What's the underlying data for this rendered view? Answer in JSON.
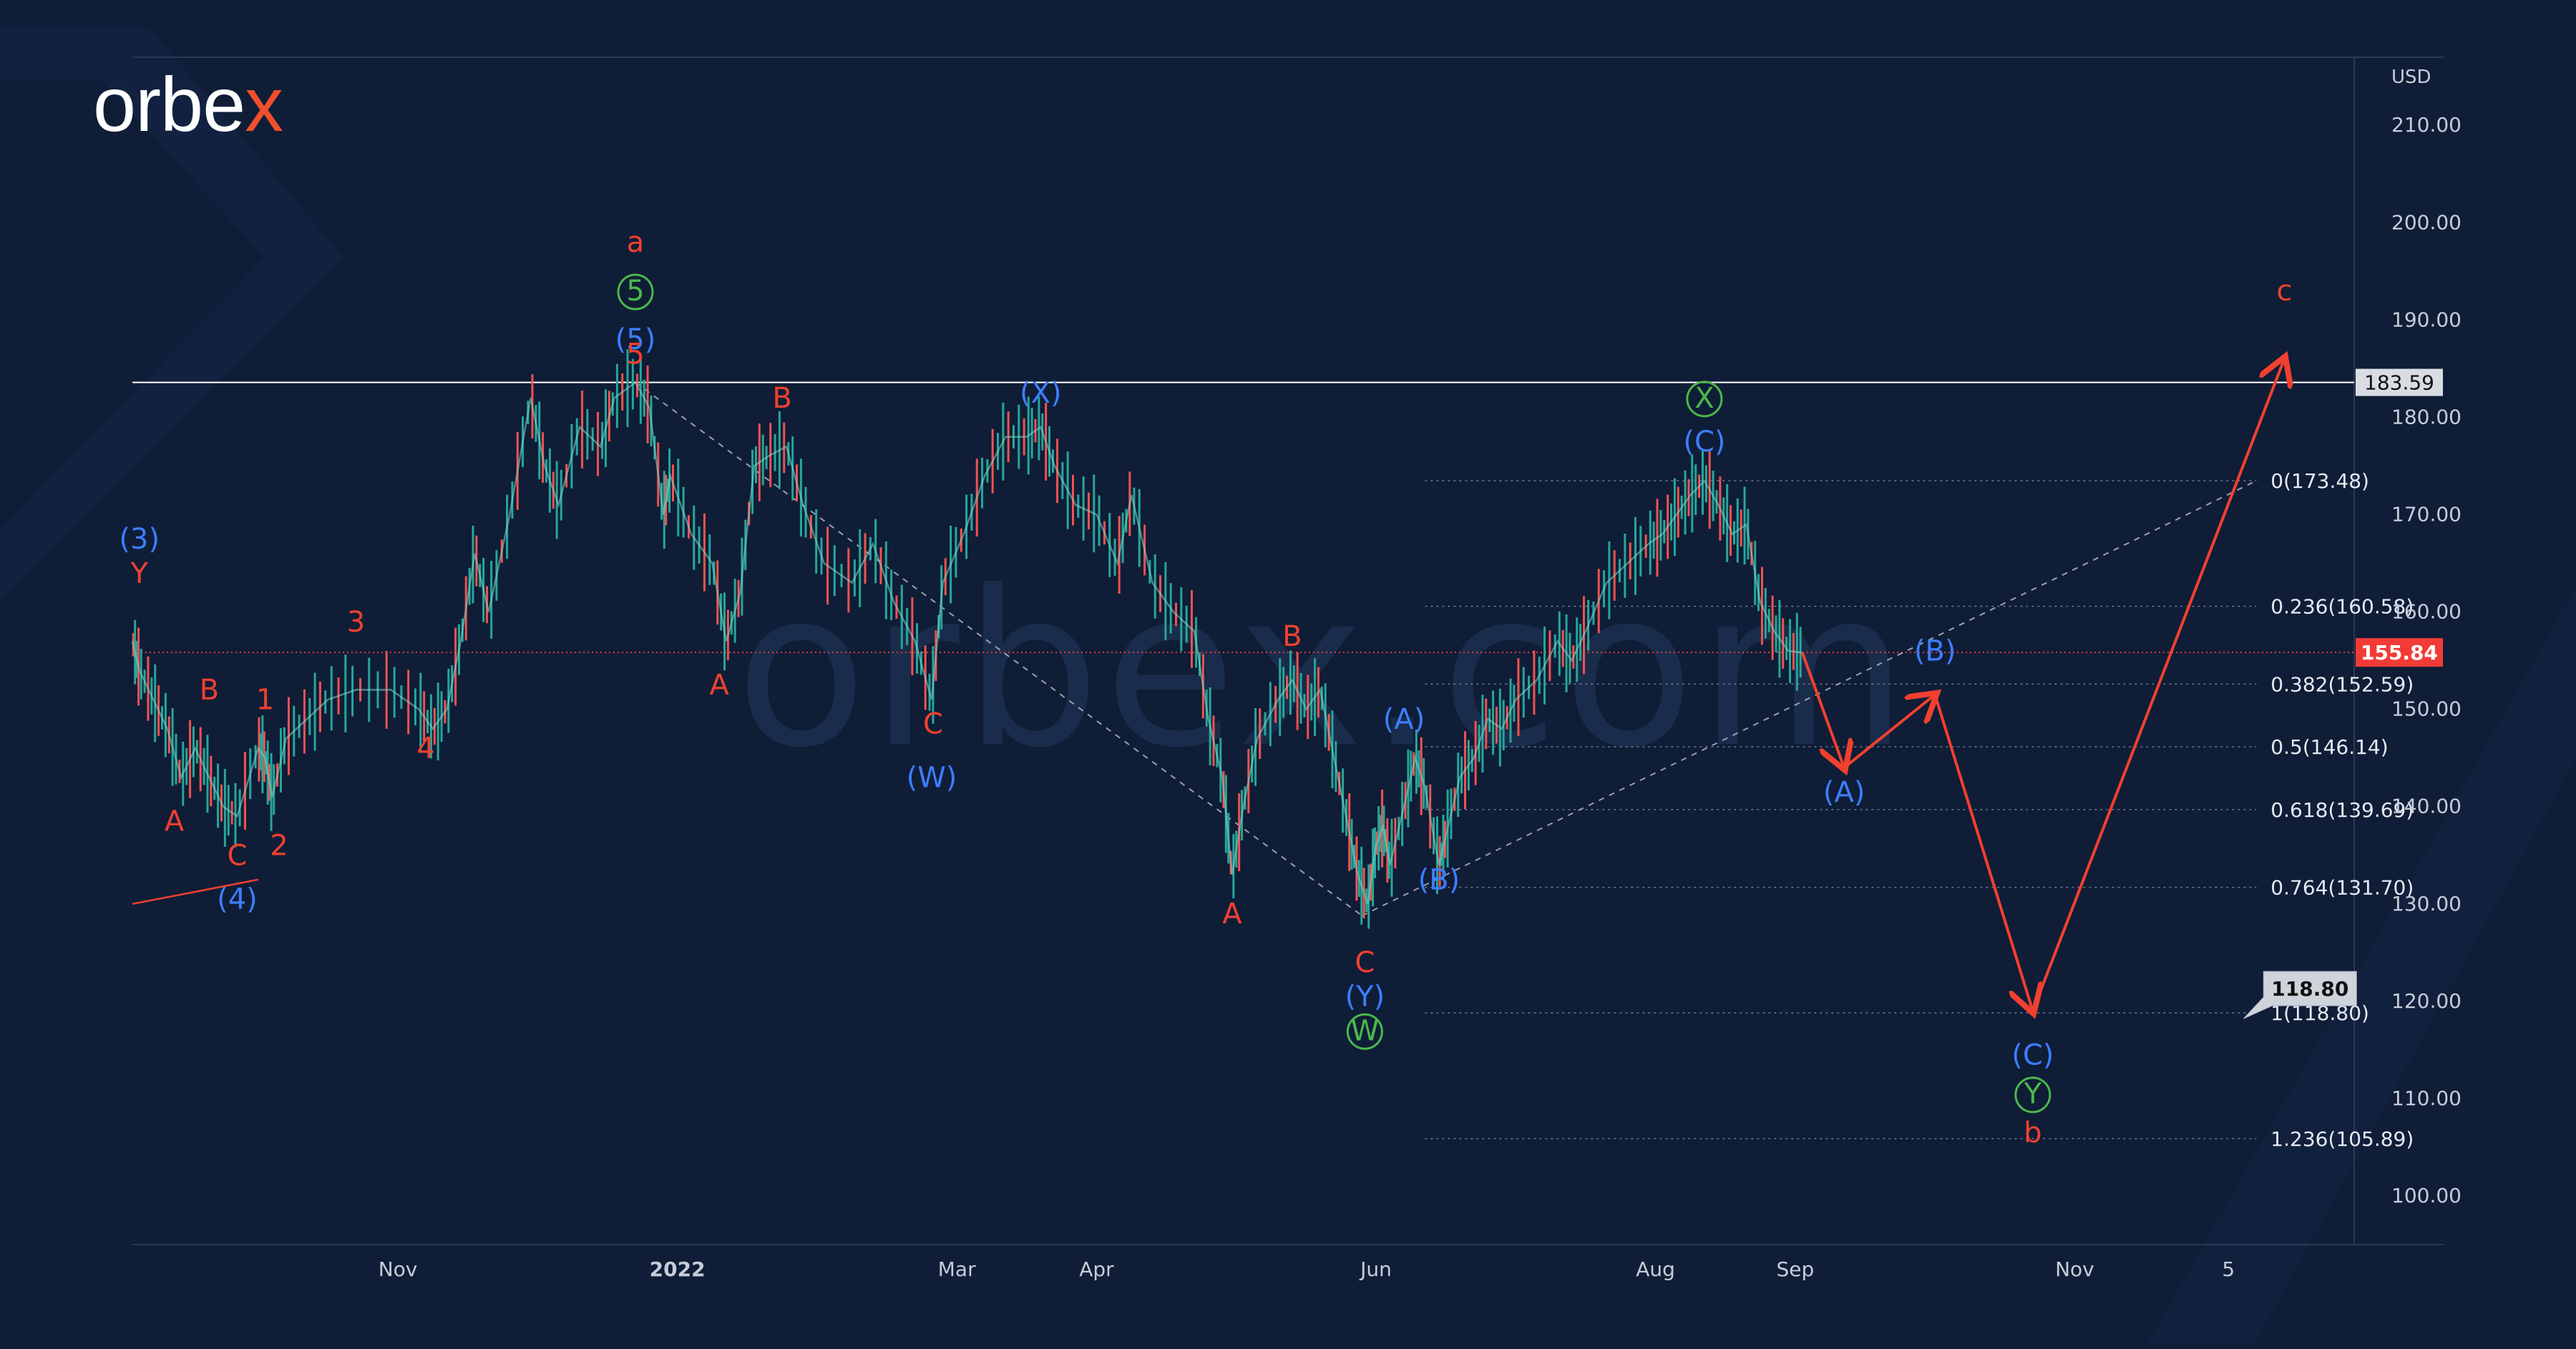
{
  "brand": {
    "name_main": "orbe",
    "name_x": "x",
    "watermark": "orbex.com"
  },
  "colors": {
    "background": "#0f1d37",
    "red": "#f0402f",
    "blue": "#3d7dff",
    "green": "#4bb84a",
    "grid": "#2a3a55",
    "axis_text": "#c7ccd8",
    "price_line": "#ffffff",
    "current_price_bg": "#f23b36"
  },
  "chart_data": {
    "type": "line",
    "title": "",
    "currency": "USD",
    "y_range": [
      95,
      217
    ],
    "yticks": [
      "100.00",
      "110.00",
      "120.00",
      "130.00",
      "140.00",
      "150.00",
      "160.00",
      "170.00",
      "180.00",
      "190.00",
      "200.00",
      "210.00"
    ],
    "xticks": [
      {
        "label": "Nov",
        "x": 1
      },
      {
        "label": "2022",
        "x": 3
      },
      {
        "label": "Mar",
        "x": 5
      },
      {
        "label": "Apr",
        "x": 6
      },
      {
        "label": "Jun",
        "x": 8
      },
      {
        "label": "Aug",
        "x": 10
      },
      {
        "label": "Sep",
        "x": 11
      },
      {
        "label": "Nov",
        "x": 13
      },
      {
        "label": "5",
        "x": 14.1
      }
    ],
    "price_series": [
      [
        -0.9,
        157
      ],
      [
        -0.85,
        154
      ],
      [
        -0.75,
        151
      ],
      [
        -0.65,
        148
      ],
      [
        -0.55,
        143
      ],
      [
        -0.45,
        146
      ],
      [
        -0.35,
        143
      ],
      [
        -0.25,
        140
      ],
      [
        -0.15,
        139
      ],
      [
        0.0,
        146
      ],
      [
        0.05,
        145
      ],
      [
        0.1,
        141
      ],
      [
        0.2,
        147
      ],
      [
        0.35,
        149
      ],
      [
        0.5,
        151
      ],
      [
        0.7,
        152
      ],
      [
        0.95,
        152
      ],
      [
        1.15,
        150
      ],
      [
        1.25,
        148
      ],
      [
        1.35,
        150
      ],
      [
        1.45,
        157
      ],
      [
        1.55,
        166
      ],
      [
        1.65,
        160
      ],
      [
        1.8,
        170
      ],
      [
        1.95,
        182
      ],
      [
        2.05,
        175
      ],
      [
        2.15,
        171
      ],
      [
        2.3,
        179
      ],
      [
        2.45,
        177
      ],
      [
        2.55,
        182
      ],
      [
        2.7,
        183.6
      ],
      [
        2.8,
        181
      ],
      [
        2.9,
        170
      ],
      [
        2.95,
        174
      ],
      [
        3.1,
        168
      ],
      [
        3.25,
        165
      ],
      [
        3.35,
        157
      ],
      [
        3.45,
        162
      ],
      [
        3.55,
        175
      ],
      [
        3.65,
        176
      ],
      [
        3.78,
        177
      ],
      [
        3.9,
        171
      ],
      [
        4.05,
        165
      ],
      [
        4.25,
        163
      ],
      [
        4.4,
        167
      ],
      [
        4.55,
        161
      ],
      [
        4.7,
        157
      ],
      [
        4.82,
        151
      ],
      [
        4.9,
        163
      ],
      [
        5.05,
        168
      ],
      [
        5.2,
        174
      ],
      [
        5.35,
        178
      ],
      [
        5.5,
        178
      ],
      [
        5.6,
        179
      ],
      [
        5.7,
        175
      ],
      [
        5.85,
        171
      ],
      [
        6.0,
        170
      ],
      [
        6.15,
        165
      ],
      [
        6.25,
        172
      ],
      [
        6.4,
        163
      ],
      [
        6.55,
        160
      ],
      [
        6.7,
        158
      ],
      [
        6.8,
        149
      ],
      [
        6.9,
        143
      ],
      [
        6.97,
        133
      ],
      [
        7.05,
        140
      ],
      [
        7.15,
        147
      ],
      [
        7.3,
        151
      ],
      [
        7.4,
        153
      ],
      [
        7.5,
        150
      ],
      [
        7.6,
        152
      ],
      [
        7.7,
        145
      ],
      [
        7.8,
        138
      ],
      [
        7.87,
        133
      ],
      [
        7.94,
        130
      ],
      [
        8.0,
        136
      ],
      [
        8.05,
        138
      ],
      [
        8.1,
        134
      ],
      [
        8.2,
        140
      ],
      [
        8.28,
        145
      ],
      [
        8.35,
        142
      ],
      [
        8.45,
        134
      ],
      [
        8.5,
        137
      ],
      [
        8.6,
        143
      ],
      [
        8.7,
        145
      ],
      [
        8.8,
        149
      ],
      [
        8.9,
        148
      ],
      [
        9.0,
        151
      ],
      [
        9.15,
        153
      ],
      [
        9.3,
        157
      ],
      [
        9.4,
        155
      ],
      [
        9.5,
        158
      ],
      [
        9.65,
        163
      ],
      [
        9.8,
        165
      ],
      [
        9.95,
        167
      ],
      [
        10.05,
        168
      ],
      [
        10.15,
        170
      ],
      [
        10.25,
        172
      ],
      [
        10.35,
        173.48
      ],
      [
        10.45,
        171
      ],
      [
        10.55,
        168
      ],
      [
        10.65,
        169
      ],
      [
        10.75,
        161
      ],
      [
        10.85,
        158
      ],
      [
        10.95,
        156
      ],
      [
        11.05,
        155.84
      ]
    ],
    "fib_levels": [
      {
        "label": "0(173.48)",
        "value": 173.48
      },
      {
        "label": "0.236(160.58)",
        "value": 160.58
      },
      {
        "label": "0.382(152.59)",
        "value": 152.59
      },
      {
        "label": "0.5(146.14)",
        "value": 146.14
      },
      {
        "label": "0.618(139.69)",
        "value": 139.69
      },
      {
        "label": "0.764(131.70)",
        "value": 131.7
      },
      {
        "label": "1(118.80)",
        "value": 118.8
      },
      {
        "label": "1.236(105.89)",
        "value": 105.89
      }
    ],
    "fib_x_range": [
      8.35,
      14.3
    ],
    "resistance_level": 183.59,
    "resistance_label": "183.59",
    "current_price": 155.84,
    "current_price_label": "155.84",
    "target": {
      "value": 118.8,
      "label": "118.80",
      "x": 14.3
    },
    "forecast_path": [
      [
        11.05,
        155.84
      ],
      [
        11.35,
        144
      ],
      [
        12.0,
        151.5
      ],
      [
        12.7,
        119
      ],
      [
        14.5,
        186
      ]
    ],
    "trend_line_1": [
      [
        2.7,
        183.59
      ],
      [
        7.9,
        128.8
      ]
    ],
    "trend_line_2": [
      [
        7.9,
        128.8
      ],
      [
        14.3,
        173.48
      ]
    ],
    "wedge_line": [
      [
        -0.9,
        130
      ],
      [
        0.0,
        132.5
      ]
    ],
    "wave_labels": [
      {
        "text": "a",
        "x": 2.7,
        "y": 197,
        "color": "red"
      },
      {
        "text": "5",
        "x": 2.7,
        "y": 192,
        "color": "green",
        "circle": true
      },
      {
        "text": "(5)",
        "x": 2.7,
        "y": 187,
        "color": "blue"
      },
      {
        "text": "5",
        "x": 2.7,
        "y": 185.5,
        "color": "red"
      },
      {
        "text": "(3)",
        "x": -0.85,
        "y": 166.5,
        "color": "blue"
      },
      {
        "text": "Y",
        "x": -0.85,
        "y": 163,
        "color": "red"
      },
      {
        "text": "B",
        "x": -0.35,
        "y": 151,
        "color": "red"
      },
      {
        "text": "A",
        "x": -0.6,
        "y": 137.5,
        "color": "red"
      },
      {
        "text": "C",
        "x": -0.15,
        "y": 134,
        "color": "red"
      },
      {
        "text": "(4)",
        "x": -0.15,
        "y": 129.5,
        "color": "blue"
      },
      {
        "text": "1",
        "x": 0.05,
        "y": 150,
        "color": "red"
      },
      {
        "text": "2",
        "x": 0.15,
        "y": 135,
        "color": "red"
      },
      {
        "text": "3",
        "x": 0.7,
        "y": 158,
        "color": "red"
      },
      {
        "text": "4",
        "x": 1.2,
        "y": 145,
        "color": "red"
      },
      {
        "text": "A",
        "x": 3.3,
        "y": 151.5,
        "color": "red"
      },
      {
        "text": "B",
        "x": 3.75,
        "y": 181,
        "color": "red"
      },
      {
        "text": "C",
        "x": 4.83,
        "y": 147.5,
        "color": "red"
      },
      {
        "text": "(W)",
        "x": 4.82,
        "y": 142,
        "color": "blue"
      },
      {
        "text": "(X)",
        "x": 5.6,
        "y": 181.5,
        "color": "blue"
      },
      {
        "text": "B",
        "x": 7.4,
        "y": 156.5,
        "color": "red"
      },
      {
        "text": "A",
        "x": 6.97,
        "y": 128,
        "color": "red"
      },
      {
        "text": "C",
        "x": 7.92,
        "y": 123,
        "color": "red"
      },
      {
        "text": "(Y)",
        "x": 7.92,
        "y": 119.5,
        "color": "blue"
      },
      {
        "text": "W",
        "x": 7.92,
        "y": 116,
        "color": "green",
        "circle": true
      },
      {
        "text": "(A)",
        "x": 8.2,
        "y": 148,
        "color": "blue"
      },
      {
        "text": "(B)",
        "x": 8.45,
        "y": 131.5,
        "color": "blue"
      },
      {
        "text": "X",
        "x": 10.35,
        "y": 181,
        "color": "green",
        "circle": true
      },
      {
        "text": "(C)",
        "x": 10.35,
        "y": 176.5,
        "color": "blue"
      },
      {
        "text": "(A)",
        "x": 11.35,
        "y": 140.5,
        "color": "blue"
      },
      {
        "text": "(B)",
        "x": 12.0,
        "y": 155,
        "color": "blue"
      },
      {
        "text": "(C)",
        "x": 12.7,
        "y": 113.5,
        "color": "blue"
      },
      {
        "text": "Y",
        "x": 12.7,
        "y": 109.5,
        "color": "green",
        "circle": true
      },
      {
        "text": "b",
        "x": 12.7,
        "y": 105.5,
        "color": "red"
      },
      {
        "text": "c",
        "x": 14.5,
        "y": 192,
        "color": "red"
      }
    ]
  }
}
